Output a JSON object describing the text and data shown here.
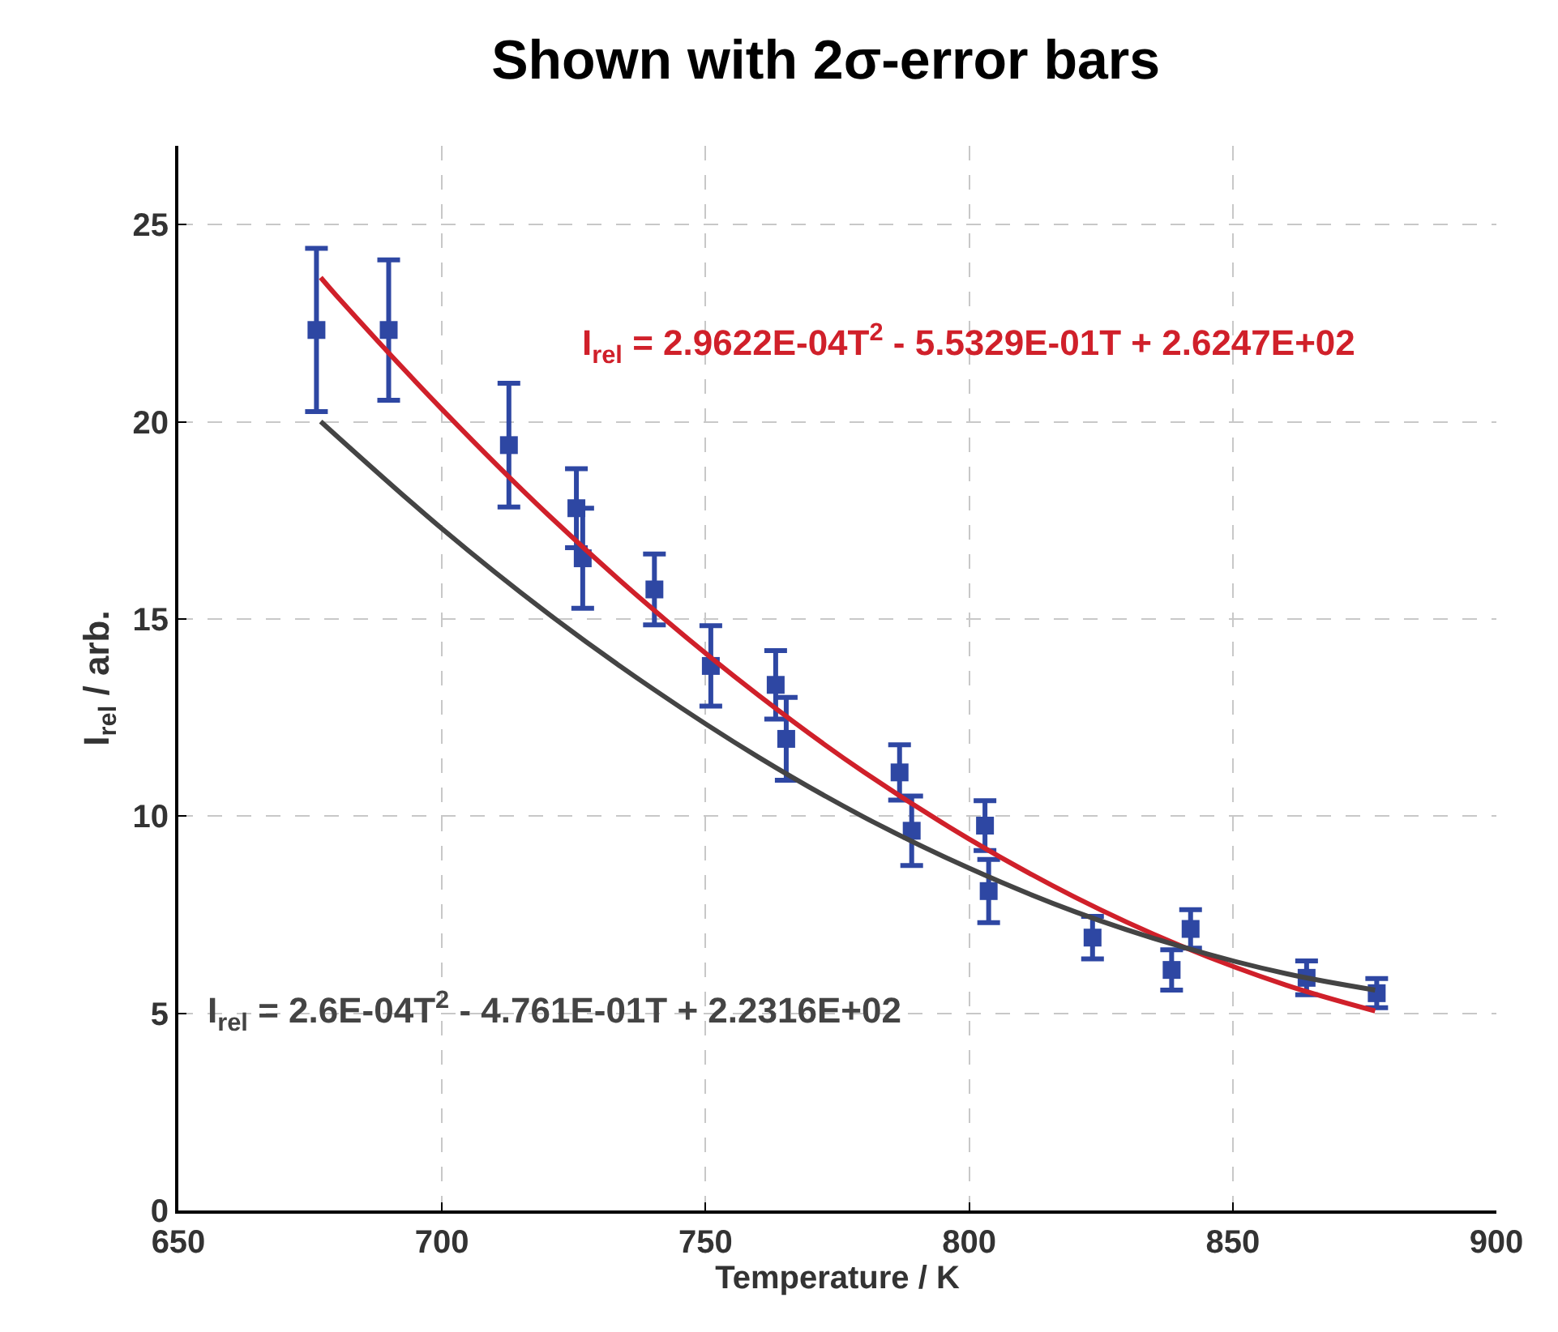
{
  "chart_data": {
    "type": "scatter",
    "title": "Shown with 2σ-error bars",
    "xlabel": "Temperature / K",
    "ylabel": "I$_{rel}$ / arb.",
    "xlim": [
      650,
      900
    ],
    "xticks": [
      650,
      700,
      750,
      800,
      850,
      900
    ],
    "ylim": [
      0,
      27
    ],
    "yticks": [
      0,
      5,
      10,
      15,
      20,
      25
    ],
    "grid": true,
    "series": [
      {
        "marker": "square",
        "color": "#2e47a3",
        "x": [
          676.2,
          689.9,
          712.7,
          725.5,
          726.7,
          740.3,
          751.0,
          763.3,
          765.3,
          786.8,
          789.1,
          803.0,
          803.7,
          823.4,
          838.4,
          842.0,
          864.0,
          877.3
        ],
        "values": [
          22.33,
          22.33,
          19.41,
          17.81,
          16.54,
          15.75,
          13.81,
          13.33,
          11.96,
          11.11,
          9.63,
          9.76,
          8.1,
          6.92,
          6.1,
          7.14,
          5.9,
          5.51
        ],
        "errors": [
          2.07,
          1.78,
          1.57,
          1.0,
          1.27,
          0.9,
          1.02,
          0.87,
          1.05,
          0.7,
          0.88,
          0.63,
          0.8,
          0.54,
          0.51,
          0.49,
          0.43,
          0.37
        ]
      },
      {
        "type": "line",
        "marker": "none",
        "color": "#d0202a",
        "x": [
          677,
          680,
          700,
          720,
          740,
          760,
          780,
          800,
          820,
          840,
          860,
          877
        ],
        "values": [
          23.66,
          23.2,
          20.32,
          17.66,
          15.25,
          13.07,
          11.12,
          9.42,
          7.95,
          6.72,
          5.72,
          5.06
        ]
      },
      {
        "type": "line",
        "marker": "none",
        "color": "#444444",
        "x": [
          677,
          700,
          720,
          740,
          760,
          780,
          800,
          820,
          840,
          860,
          877
        ],
        "values": [
          20.01,
          17.29,
          15.15,
          13.23,
          11.5,
          9.98,
          8.68,
          7.58,
          6.7,
          6.01,
          5.59
        ]
      }
    ],
    "annotations": [
      "I$_{rel}$ = 2.9622E-04T$^{2}$ - 5.5329E-01T + 2.6247E+02",
      "I$_{rel}$ = 2.6E-04T$^{2}$ - 4.761E-01T + 2.2316E+02"
    ]
  }
}
